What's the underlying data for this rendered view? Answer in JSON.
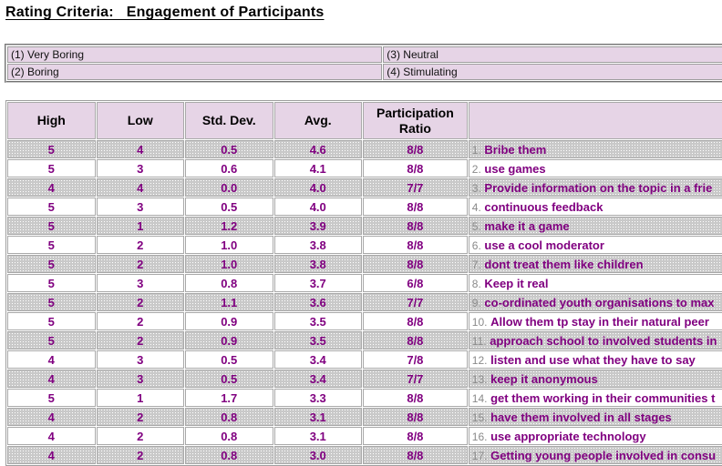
{
  "page": {
    "title": "Rating Criteria:   Engagement of Participants"
  },
  "legend": {
    "items": [
      "(1) Very Boring",
      "(2) Boring",
      "(3) Neutral",
      "(4) Stimulating"
    ]
  },
  "table": {
    "headers": [
      "High",
      "Low",
      "Std. Dev.",
      "Avg.",
      "Participation Ratio",
      ""
    ],
    "rows": [
      {
        "high": "5",
        "low": "4",
        "std": "0.5",
        "avg": "4.6",
        "ratio": "8/8",
        "num": "1.",
        "label": "Bribe them"
      },
      {
        "high": "5",
        "low": "3",
        "std": "0.6",
        "avg": "4.1",
        "ratio": "8/8",
        "num": "2.",
        "label": "use games"
      },
      {
        "high": "4",
        "low": "4",
        "std": "0.0",
        "avg": "4.0",
        "ratio": "7/7",
        "num": "3.",
        "label": "Provide information on the topic in a frie"
      },
      {
        "high": "5",
        "low": "3",
        "std": "0.5",
        "avg": "4.0",
        "ratio": "8/8",
        "num": "4.",
        "label": "continuous feedback"
      },
      {
        "high": "5",
        "low": "1",
        "std": "1.2",
        "avg": "3.9",
        "ratio": "8/8",
        "num": "5.",
        "label": "make it a game"
      },
      {
        "high": "5",
        "low": "2",
        "std": "1.0",
        "avg": "3.8",
        "ratio": "8/8",
        "num": "6.",
        "label": "use a cool moderator"
      },
      {
        "high": "5",
        "low": "2",
        "std": "1.0",
        "avg": "3.8",
        "ratio": "8/8",
        "num": "7.",
        "label": "dont treat them like children"
      },
      {
        "high": "5",
        "low": "3",
        "std": "0.8",
        "avg": "3.7",
        "ratio": "6/8",
        "num": "8.",
        "label": "Keep it real"
      },
      {
        "high": "5",
        "low": "2",
        "std": "1.1",
        "avg": "3.6",
        "ratio": "7/7",
        "num": "9.",
        "label": "co-ordinated youth organisations to max"
      },
      {
        "high": "5",
        "low": "2",
        "std": "0.9",
        "avg": "3.5",
        "ratio": "8/8",
        "num": "10.",
        "label": "Allow them tp stay in their natural peer"
      },
      {
        "high": "5",
        "low": "2",
        "std": "0.9",
        "avg": "3.5",
        "ratio": "8/8",
        "num": "11.",
        "label": "approach school to involved students in"
      },
      {
        "high": "4",
        "low": "3",
        "std": "0.5",
        "avg": "3.4",
        "ratio": "7/8",
        "num": "12.",
        "label": "listen and use what they have to say"
      },
      {
        "high": "4",
        "low": "3",
        "std": "0.5",
        "avg": "3.4",
        "ratio": "7/7",
        "num": "13.",
        "label": "keep it anonymous"
      },
      {
        "high": "5",
        "low": "1",
        "std": "1.7",
        "avg": "3.3",
        "ratio": "8/8",
        "num": "14.",
        "label": "get them working in their communities t"
      },
      {
        "high": "4",
        "low": "2",
        "std": "0.8",
        "avg": "3.1",
        "ratio": "8/8",
        "num": "15.",
        "label": "have them involved in all stages"
      },
      {
        "high": "4",
        "low": "2",
        "std": "0.8",
        "avg": "3.1",
        "ratio": "8/8",
        "num": "16.",
        "label": "use appropriate technology"
      },
      {
        "high": "4",
        "low": "2",
        "std": "0.8",
        "avg": "3.0",
        "ratio": "8/8",
        "num": "17.",
        "label": "Getting young people involved in consu"
      }
    ]
  },
  "colors": {
    "accent_purple": "#800080",
    "row_number_gray": "#8a8a8a",
    "header_pink_base": "#ddc5dd",
    "row_gray_base": "#c9c9c9",
    "border_gray": "#9e9e9e"
  }
}
